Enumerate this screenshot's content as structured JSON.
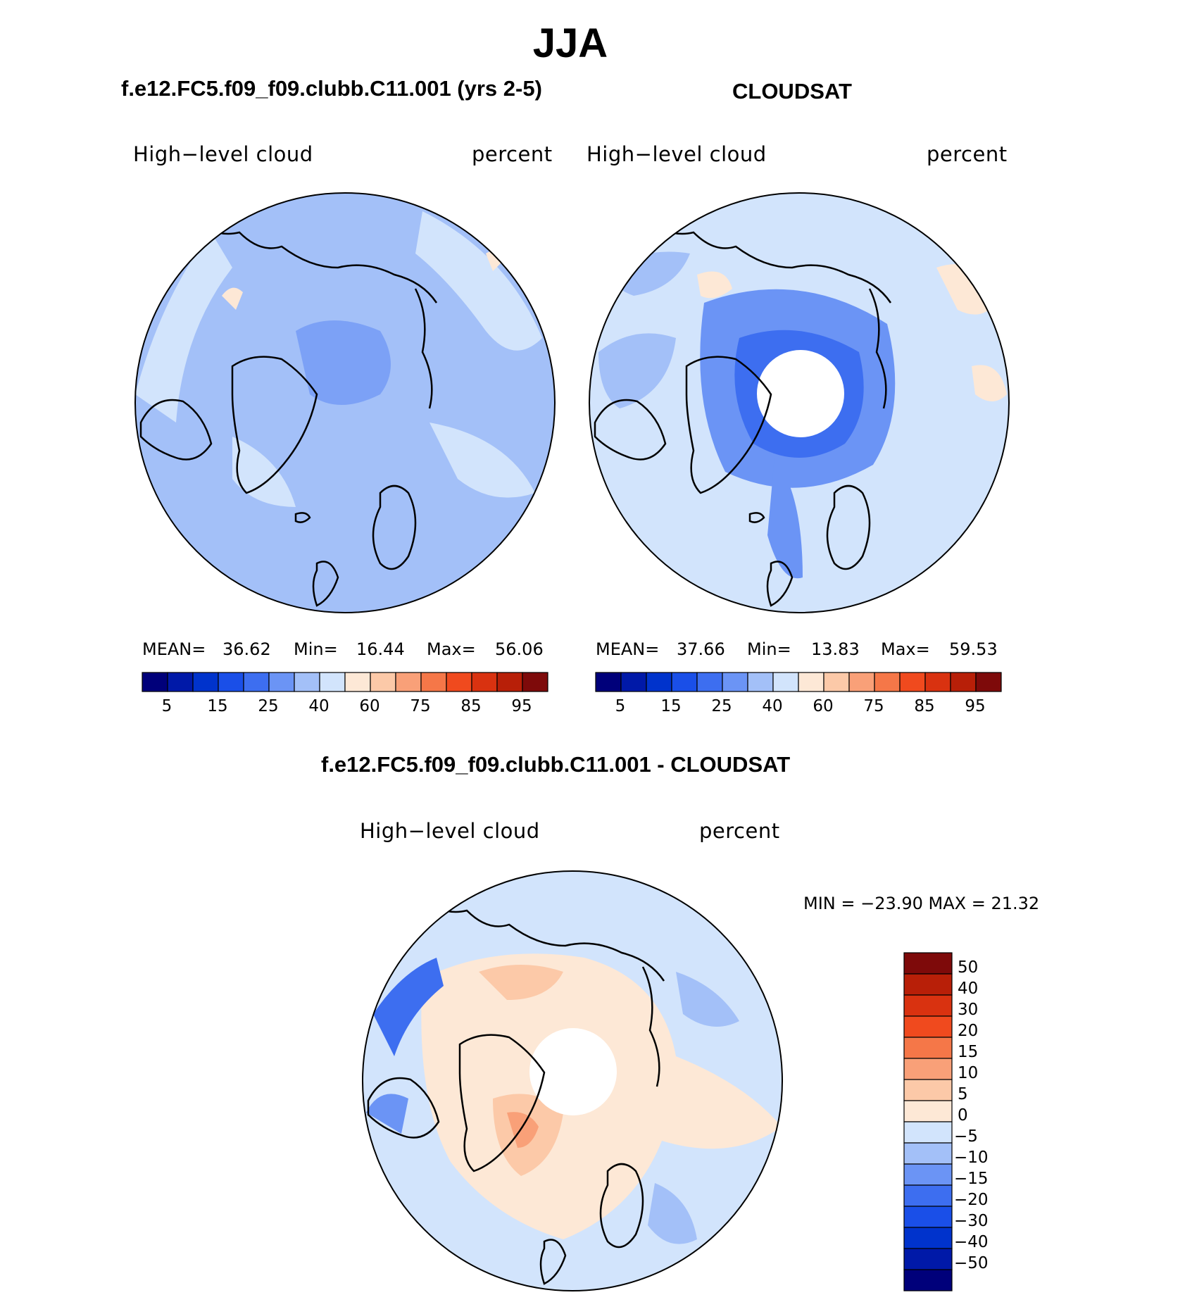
{
  "main_title": "JJA",
  "panels": [
    {
      "title": "f.e12.FC5.f09_f09.clubb.C11.001 (yrs 2-5)",
      "variable": "High−level cloud",
      "units": "percent",
      "stats": {
        "mean_label": "MEAN=",
        "mean": "36.62",
        "min_label": "Min=",
        "min": "16.44",
        "max_label": "Max=",
        "max": "56.06"
      }
    },
    {
      "title": "CLOUDSAT",
      "variable": "High−level cloud",
      "units": "percent",
      "stats": {
        "mean_label": "MEAN=",
        "mean": "37.66",
        "min_label": "Min=",
        "min": "13.83",
        "max_label": "Max=",
        "max": "59.53"
      }
    }
  ],
  "diff_panel": {
    "title": "f.e12.FC5.f09_f09.clubb.C11.001 - CLOUDSAT",
    "variable": "High−level cloud",
    "units": "percent",
    "minmax": "MIN = −23.90 MAX =   21.32"
  },
  "colorbar_abs": {
    "colors": [
      "#00007a",
      "#0019a8",
      "#0033cc",
      "#1a4fe8",
      "#3d6ef0",
      "#6b94f5",
      "#a3c0f8",
      "#d2e4fc",
      "#fde8d6",
      "#fcc9a8",
      "#f9a078",
      "#f57748",
      "#f04a1e",
      "#d93210",
      "#b81f08",
      "#7e0a0a"
    ],
    "tick_labels": [
      "5",
      "15",
      "25",
      "40",
      "60",
      "75",
      "85",
      "95"
    ]
  },
  "colorbar_diff": {
    "colors": [
      "#7e0a0a",
      "#b81f08",
      "#d93210",
      "#f04a1e",
      "#f57748",
      "#f9a078",
      "#fcc9a8",
      "#fde8d6",
      "#d2e4fc",
      "#a3c0f8",
      "#6b94f5",
      "#3d6ef0",
      "#1a4fe8",
      "#0033cc",
      "#0019a8",
      "#00007a"
    ],
    "tick_labels": [
      "50",
      "40",
      "30",
      "20",
      "15",
      "10",
      "5",
      "0",
      "−5",
      "−10",
      "−15",
      "−20",
      "−30",
      "−40",
      "−50"
    ]
  },
  "map_colors": {
    "panel1_base": "#a3c0f8",
    "panel2_base": "#d2e4fc",
    "diff_base": "#d2e4fc",
    "missing": "#ffffff"
  }
}
